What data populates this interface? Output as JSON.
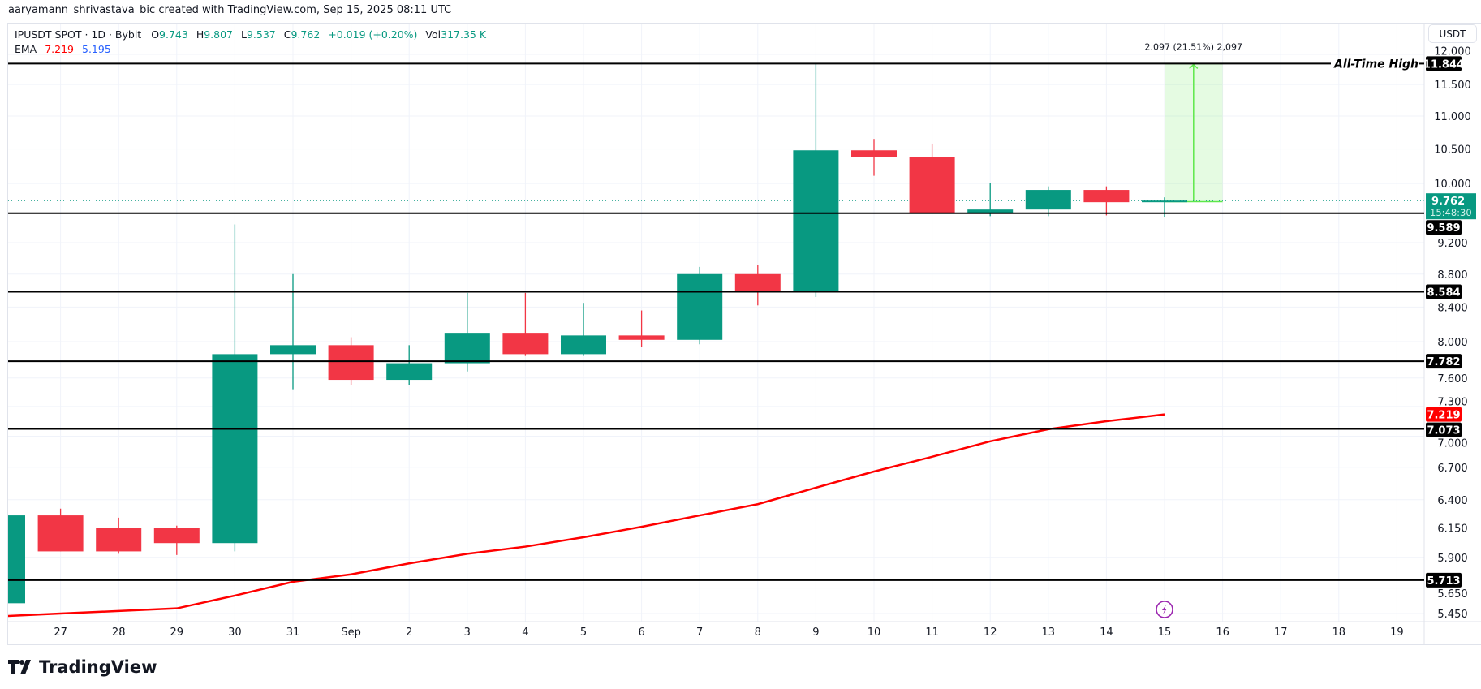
{
  "credit": "aaryamann_shrivastava_bic created with TradingView.com, Sep 15, 2025 08:11 UTC",
  "legend": {
    "symbol": "IPUSDT SPOT · 1D · Bybit",
    "o_label": "O",
    "o": "9.743",
    "h_label": "H",
    "h": "9.807",
    "l_label": "L",
    "l": "9.537",
    "c_label": "C",
    "c": "9.762",
    "change": "+0.019 (+0.20%)",
    "vol_label": "Vol",
    "vol": "317.35 K",
    "ema_label": "EMA",
    "ema1": "7.219",
    "ema2": "5.195"
  },
  "currency_button": "USDT",
  "logo_text": "TradingView",
  "colors": {
    "up": "#089981",
    "down": "#f23645",
    "ema": "#ff0000",
    "ema2": "#2962ff",
    "measure": "#5ee84a",
    "level": "#000000",
    "alert": "#9c27b0"
  },
  "chart_data": {
    "type": "candlestick",
    "title": "IPUSDT SPOT · 1D · Bybit",
    "y_scale": "log",
    "ylim": [
      5.42,
      12.1
    ],
    "grid": true,
    "y_ticks": [
      "12.000",
      "11.500",
      "11.000",
      "10.500",
      "10.000",
      "9.200",
      "8.800",
      "8.400",
      "8.000",
      "7.600",
      "7.300",
      "7.000",
      "6.700",
      "6.400",
      "6.150",
      "5.900",
      "5.650",
      "5.450"
    ],
    "x_ticks": [
      "27",
      "28",
      "29",
      "30",
      "31",
      "Sep",
      "2",
      "3",
      "4",
      "5",
      "6",
      "7",
      "8",
      "9",
      "10",
      "11",
      "12",
      "13",
      "14",
      "15",
      "16",
      "17",
      "18",
      "19"
    ],
    "candles": [
      {
        "date": "2025-08-26",
        "o": 5.53,
        "h": 6.28,
        "l": 5.5,
        "c": 6.26
      },
      {
        "date": "2025-08-27",
        "o": 6.26,
        "h": 6.32,
        "l": 5.95,
        "c": 5.95
      },
      {
        "date": "2025-08-28",
        "o": 6.15,
        "h": 6.24,
        "l": 5.93,
        "c": 5.95
      },
      {
        "date": "2025-08-29",
        "o": 6.15,
        "h": 6.17,
        "l": 5.92,
        "c": 6.02
      },
      {
        "date": "2025-08-30",
        "o": 6.02,
        "h": 9.44,
        "l": 5.95,
        "c": 7.86
      },
      {
        "date": "2025-08-31",
        "o": 7.86,
        "h": 8.8,
        "l": 7.48,
        "c": 7.96
      },
      {
        "date": "2025-09-01",
        "o": 7.96,
        "h": 8.05,
        "l": 7.52,
        "c": 7.58
      },
      {
        "date": "2025-09-02",
        "o": 7.58,
        "h": 7.96,
        "l": 7.52,
        "c": 7.76
      },
      {
        "date": "2025-09-03",
        "o": 7.76,
        "h": 8.57,
        "l": 7.67,
        "c": 8.1
      },
      {
        "date": "2025-09-04",
        "o": 8.1,
        "h": 8.57,
        "l": 7.84,
        "c": 7.86
      },
      {
        "date": "2025-09-05",
        "o": 7.86,
        "h": 8.45,
        "l": 7.84,
        "c": 8.07
      },
      {
        "date": "2025-09-06",
        "o": 8.07,
        "h": 8.36,
        "l": 7.94,
        "c": 8.02
      },
      {
        "date": "2025-09-07",
        "o": 8.02,
        "h": 8.89,
        "l": 7.97,
        "c": 8.8
      },
      {
        "date": "2025-09-08",
        "o": 8.8,
        "h": 8.91,
        "l": 8.42,
        "c": 8.58
      },
      {
        "date": "2025-09-09",
        "o": 8.58,
        "h": 11.844,
        "l": 8.52,
        "c": 10.48
      },
      {
        "date": "2025-09-10",
        "o": 10.48,
        "h": 10.65,
        "l": 10.11,
        "c": 10.38
      },
      {
        "date": "2025-09-11",
        "o": 10.38,
        "h": 10.58,
        "l": 9.59,
        "c": 9.59
      },
      {
        "date": "2025-09-12",
        "o": 9.59,
        "h": 10.01,
        "l": 9.55,
        "c": 9.64
      },
      {
        "date": "2025-09-13",
        "o": 9.64,
        "h": 9.96,
        "l": 9.55,
        "c": 9.91
      },
      {
        "date": "2025-09-14",
        "o": 9.91,
        "h": 9.96,
        "l": 9.56,
        "c": 9.74
      },
      {
        "date": "2025-09-15",
        "o": 9.743,
        "h": 9.807,
        "l": 9.537,
        "c": 9.762
      }
    ],
    "ema": [
      5.43,
      5.45,
      5.47,
      5.49,
      5.59,
      5.7,
      5.76,
      5.85,
      5.93,
      5.99,
      6.07,
      6.16,
      6.26,
      6.36,
      6.51,
      6.66,
      6.8,
      6.95,
      7.07,
      7.15,
      7.219
    ],
    "levels": [
      {
        "value": "11.844",
        "label": "All-Time High"
      },
      {
        "value": "9.589",
        "label": ""
      },
      {
        "value": "8.584",
        "label": ""
      },
      {
        "value": "7.782",
        "label": ""
      },
      {
        "value": "7.073",
        "label": ""
      },
      {
        "value": "5.713",
        "label": ""
      }
    ],
    "last_price": {
      "value": "9.762",
      "countdown": "15:48:30"
    },
    "ema_label": "7.219",
    "measure": {
      "from_date": "2025-09-15",
      "to_date": "2025-09-16",
      "from": 9.747,
      "to": 11.844,
      "label": "2.097 (21.51%) 2,097"
    },
    "alert_marker_date": "2025-09-15"
  }
}
